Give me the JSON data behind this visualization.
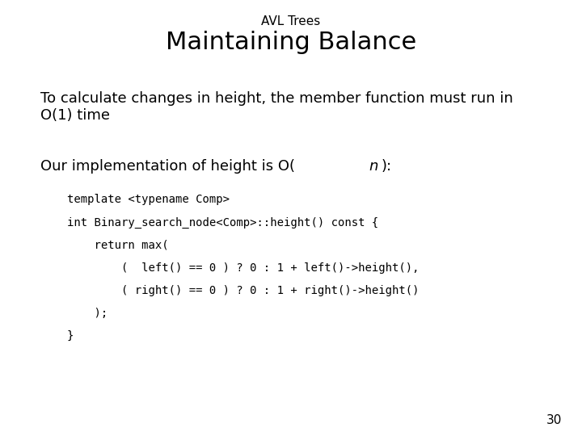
{
  "background_color": "#ffffff",
  "subtitle": "AVL Trees",
  "title": "Maintaining Balance",
  "body_text1_line1": "To calculate changes in height, the member function must run in",
  "body_text1_line2": "O(1) time",
  "body_text2_prefix": "Our implementation of height is O(",
  "body_text2_italic": "n",
  "body_text2_suffix": "):",
  "code_lines": [
    "template <typename Comp>",
    "int Binary_search_node<Comp>::height() const {",
    "    return max(",
    "        (  left() == 0 ) ? 0 : 1 + left()->height(),",
    "        ( right() == 0 ) ? 0 : 1 + right()->height()",
    "    );",
    "}"
  ],
  "page_number": "30",
  "subtitle_fontsize": 11,
  "title_fontsize": 22,
  "body_fontsize": 13,
  "code_fontsize": 10,
  "page_num_fontsize": 11
}
